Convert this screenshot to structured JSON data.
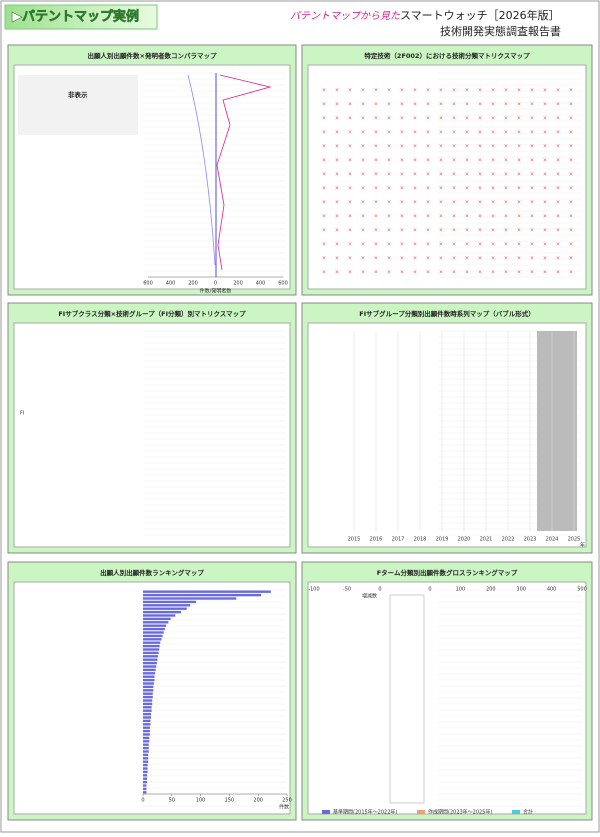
{
  "header": {
    "label": "▶パテントマップ実例",
    "lead": "パテントマップから見た",
    "title": "スマートウォッチ［2026年版］",
    "subtitle": "技術開発実態調査報告書"
  },
  "panels": [
    {
      "title": "出願人別出願件数×発明者数コンパラマップ",
      "note": "非表示",
      "axis_label": "件数/発明者数",
      "xticks": [
        600,
        400,
        200,
        0,
        200,
        400,
        600
      ]
    },
    {
      "title": "特定技術（2F002）における技術分類マトリクスマップ"
    },
    {
      "title": "FIサブクラス分類×技術グループ（FI分類）別マトリクスマップ",
      "axis_label": "FI"
    },
    {
      "title": "FIサブグループ分類別出願件数時系列マップ（バブル形式）",
      "axis_label": "年",
      "xticks": [
        2015,
        2016,
        2017,
        2018,
        2019,
        2020,
        2021,
        2022,
        2023,
        2024,
        2025
      ]
    },
    {
      "title": "出願人別出願件数ランキングマップ",
      "axis_label": "件数",
      "xlim": [
        0,
        250
      ],
      "xticks": [
        0,
        50,
        100,
        150,
        200,
        250
      ],
      "color": "#6a6ae0",
      "values": [
        222,
        205,
        162,
        92,
        82,
        76,
        66,
        56,
        48,
        44,
        40,
        38,
        36,
        34,
        32,
        30,
        29,
        28,
        27,
        26,
        25,
        24,
        23,
        22,
        21,
        20,
        20,
        19,
        18,
        18,
        17,
        17,
        16,
        16,
        15,
        15,
        14,
        14,
        13,
        13,
        12,
        12,
        12,
        11,
        11,
        10,
        10,
        10,
        9,
        9,
        9,
        8,
        8,
        8,
        7,
        7,
        7,
        6,
        6,
        6
      ]
    },
    {
      "title": "Fターム分類別出願件数グロスランキングマップ",
      "axis_label": "増減数",
      "xticks_left": [
        -100,
        -50,
        0
      ],
      "xticks_right": [
        0,
        100,
        200,
        300,
        400,
        500
      ],
      "legend": [
        "基準期間(2015年～2022年)",
        "作成期間(2023年～2025年)",
        "合計"
      ],
      "legend_colors": [
        "#6a6ae0",
        "#f0a070",
        "#50c8d8"
      ]
    }
  ]
}
